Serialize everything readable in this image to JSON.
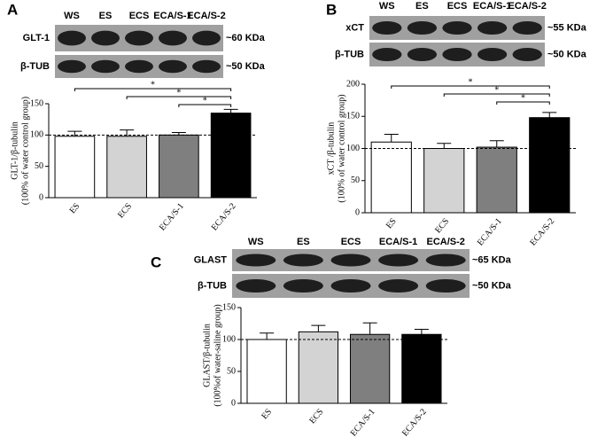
{
  "chart_data": [
    {
      "type": "bar",
      "panel": "A",
      "blot_lanes": [
        "WS",
        "ES",
        "ECS",
        "ECA/S-1",
        "ECA/S-2"
      ],
      "blot_rows": [
        "GLT-1",
        "β-TUB"
      ],
      "blot_sizes": [
        "~60 KDa",
        "~50 KDa"
      ],
      "ylabel": [
        "GLT-1/β-tubulin",
        "(100% of water control group)"
      ],
      "categories": [
        "ES",
        "ECS",
        "ECA/S-1",
        "ECA/S-2"
      ],
      "values": [
        98,
        98,
        100,
        135
      ],
      "errors": [
        8,
        10,
        4,
        6
      ],
      "colors": [
        "#ffffff",
        "#d3d3d3",
        "#7f7f7f",
        "#000000"
      ],
      "ylim": [
        0,
        150
      ],
      "yticks": [
        0,
        50,
        100,
        150
      ],
      "reference_line": 100,
      "significance": [
        {
          "groups": [
            0,
            3
          ],
          "label": "*"
        },
        {
          "groups": [
            1,
            3
          ],
          "label": "*"
        },
        {
          "groups": [
            2,
            3
          ],
          "label": "*"
        }
      ]
    },
    {
      "type": "bar",
      "panel": "B",
      "blot_lanes": [
        "WS",
        "ES",
        "ECS",
        "ECA/S-1",
        "ECA/S-2"
      ],
      "blot_rows": [
        "xCT",
        "β-TUB"
      ],
      "blot_sizes": [
        "~55 KDa",
        "~50 KDa"
      ],
      "ylabel": [
        "xCT /β-tubulin",
        "(100% of water control group)"
      ],
      "categories": [
        "ES",
        "ECS",
        "ECA/S-1",
        "ECA/S-2"
      ],
      "values": [
        110,
        100,
        102,
        148
      ],
      "errors": [
        12,
        8,
        10,
        8
      ],
      "colors": [
        "#ffffff",
        "#d3d3d3",
        "#7f7f7f",
        "#000000"
      ],
      "ylim": [
        0,
        200
      ],
      "yticks": [
        0,
        50,
        100,
        150,
        200
      ],
      "reference_line": 100,
      "significance": [
        {
          "groups": [
            0,
            3
          ],
          "label": "*"
        },
        {
          "groups": [
            1,
            3
          ],
          "label": "*"
        },
        {
          "groups": [
            2,
            3
          ],
          "label": "*"
        }
      ]
    },
    {
      "type": "bar",
      "panel": "C",
      "blot_lanes": [
        "WS",
        "ES",
        "ECS",
        "ECA/S-1",
        "ECA/S-2"
      ],
      "blot_rows": [
        "GLAST",
        "β-TUB"
      ],
      "blot_sizes": [
        "~65 KDa",
        "~50 KDa"
      ],
      "ylabel": [
        "GLAST/β-tubulin",
        "(100%of water-saline group)"
      ],
      "categories": [
        "ES",
        "ECS",
        "ECA/S-1",
        "ECA/S-2"
      ],
      "values": [
        100,
        112,
        108,
        108
      ],
      "errors": [
        10,
        10,
        18,
        8
      ],
      "colors": [
        "#ffffff",
        "#d3d3d3",
        "#7f7f7f",
        "#000000"
      ],
      "ylim": [
        0,
        150
      ],
      "yticks": [
        0,
        50,
        100,
        150
      ],
      "reference_line": 100,
      "significance": []
    }
  ]
}
